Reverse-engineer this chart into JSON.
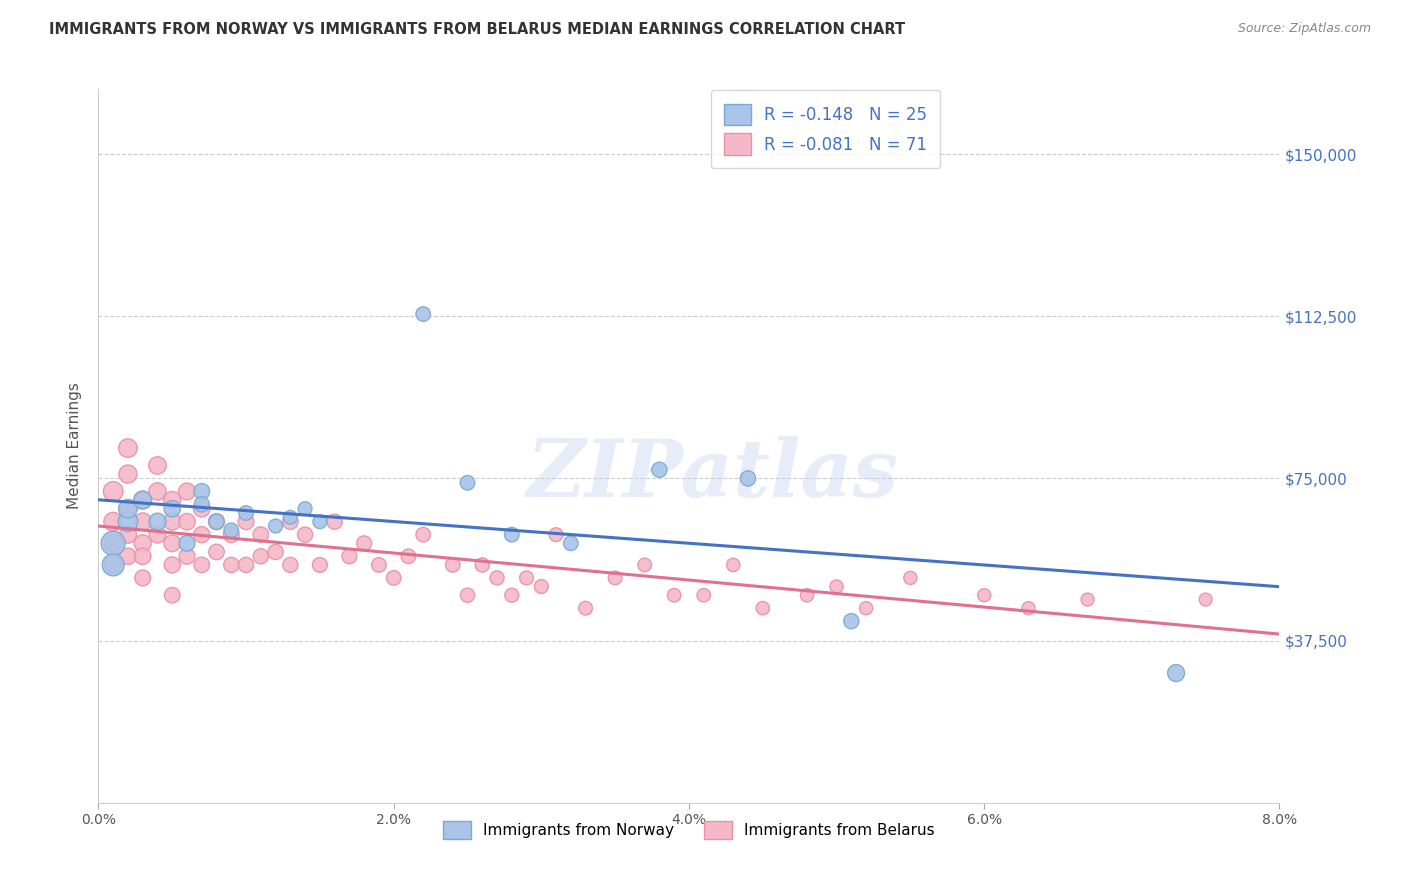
{
  "title": "IMMIGRANTS FROM NORWAY VS IMMIGRANTS FROM BELARUS MEDIAN EARNINGS CORRELATION CHART",
  "source": "Source: ZipAtlas.com",
  "ylabel": "Median Earnings",
  "yticks": [
    0,
    37500,
    75000,
    112500,
    150000
  ],
  "ytick_labels": [
    "",
    "$37,500",
    "$75,000",
    "$112,500",
    "$150,000"
  ],
  "xmin": 0.0,
  "xmax": 0.08,
  "ymin": 15000,
  "ymax": 165000,
  "norway_color": "#a8c4e8",
  "norway_edge_color": "#7aaad0",
  "norway_line_color": "#4472c4",
  "belarus_color": "#f5b8c8",
  "belarus_edge_color": "#e890a8",
  "belarus_line_color": "#e07090",
  "norway_R": -0.148,
  "norway_N": 25,
  "belarus_R": -0.081,
  "belarus_N": 71,
  "norway_scatter_x": [
    0.001,
    0.001,
    0.002,
    0.002,
    0.003,
    0.004,
    0.005,
    0.006,
    0.007,
    0.007,
    0.008,
    0.009,
    0.01,
    0.012,
    0.013,
    0.014,
    0.015,
    0.022,
    0.025,
    0.028,
    0.032,
    0.038,
    0.044,
    0.051,
    0.073
  ],
  "norway_scatter_y": [
    60000,
    55000,
    65000,
    68000,
    70000,
    65000,
    68000,
    60000,
    72000,
    69000,
    65000,
    63000,
    67000,
    64000,
    66000,
    68000,
    65000,
    113000,
    74000,
    62000,
    60000,
    77000,
    75000,
    42000,
    30000
  ],
  "norway_scatter_size": [
    300,
    250,
    200,
    180,
    160,
    150,
    140,
    130,
    130,
    120,
    120,
    110,
    110,
    100,
    100,
    100,
    100,
    110,
    110,
    110,
    110,
    120,
    120,
    120,
    150
  ],
  "belarus_scatter_x": [
    0.001,
    0.001,
    0.001,
    0.001,
    0.002,
    0.002,
    0.002,
    0.002,
    0.002,
    0.003,
    0.003,
    0.003,
    0.003,
    0.003,
    0.004,
    0.004,
    0.004,
    0.005,
    0.005,
    0.005,
    0.005,
    0.005,
    0.006,
    0.006,
    0.006,
    0.007,
    0.007,
    0.007,
    0.008,
    0.008,
    0.009,
    0.009,
    0.01,
    0.01,
    0.011,
    0.011,
    0.012,
    0.013,
    0.013,
    0.014,
    0.015,
    0.016,
    0.017,
    0.018,
    0.019,
    0.02,
    0.021,
    0.022,
    0.024,
    0.025,
    0.026,
    0.027,
    0.028,
    0.029,
    0.03,
    0.031,
    0.033,
    0.035,
    0.037,
    0.039,
    0.041,
    0.043,
    0.045,
    0.048,
    0.05,
    0.052,
    0.055,
    0.06,
    0.063,
    0.067,
    0.075
  ],
  "belarus_scatter_y": [
    72000,
    65000,
    60000,
    55000,
    82000,
    76000,
    68000,
    62000,
    57000,
    70000,
    65000,
    60000,
    57000,
    52000,
    78000,
    72000,
    62000,
    70000,
    65000,
    60000,
    55000,
    48000,
    72000,
    65000,
    57000,
    68000,
    62000,
    55000,
    65000,
    58000,
    62000,
    55000,
    65000,
    55000,
    62000,
    57000,
    58000,
    65000,
    55000,
    62000,
    55000,
    65000,
    57000,
    60000,
    55000,
    52000,
    57000,
    62000,
    55000,
    48000,
    55000,
    52000,
    48000,
    52000,
    50000,
    62000,
    45000,
    52000,
    55000,
    48000,
    48000,
    55000,
    45000,
    48000,
    50000,
    45000,
    52000,
    48000,
    45000,
    47000,
    47000
  ],
  "belarus_scatter_size": [
    200,
    180,
    160,
    150,
    180,
    170,
    160,
    150,
    140,
    170,
    160,
    150,
    140,
    130,
    160,
    155,
    145,
    155,
    150,
    145,
    135,
    125,
    145,
    140,
    130,
    140,
    135,
    125,
    135,
    125,
    130,
    120,
    130,
    120,
    125,
    120,
    120,
    125,
    120,
    120,
    115,
    120,
    115,
    115,
    110,
    110,
    110,
    110,
    108,
    105,
    105,
    103,
    102,
    100,
    100,
    100,
    98,
    98,
    96,
    95,
    94,
    93,
    92,
    92,
    91,
    90,
    90,
    89,
    88,
    87,
    86
  ],
  "watermark_text": "ZIPatlas",
  "background_color": "#ffffff",
  "grid_color": "#cccccc",
  "title_color": "#333333",
  "axis_label_color": "#4472c4",
  "legend_text_color": "#4472c4",
  "norway_legend_label": "Immigrants from Norway",
  "belarus_legend_label": "Immigrants from Belarus"
}
